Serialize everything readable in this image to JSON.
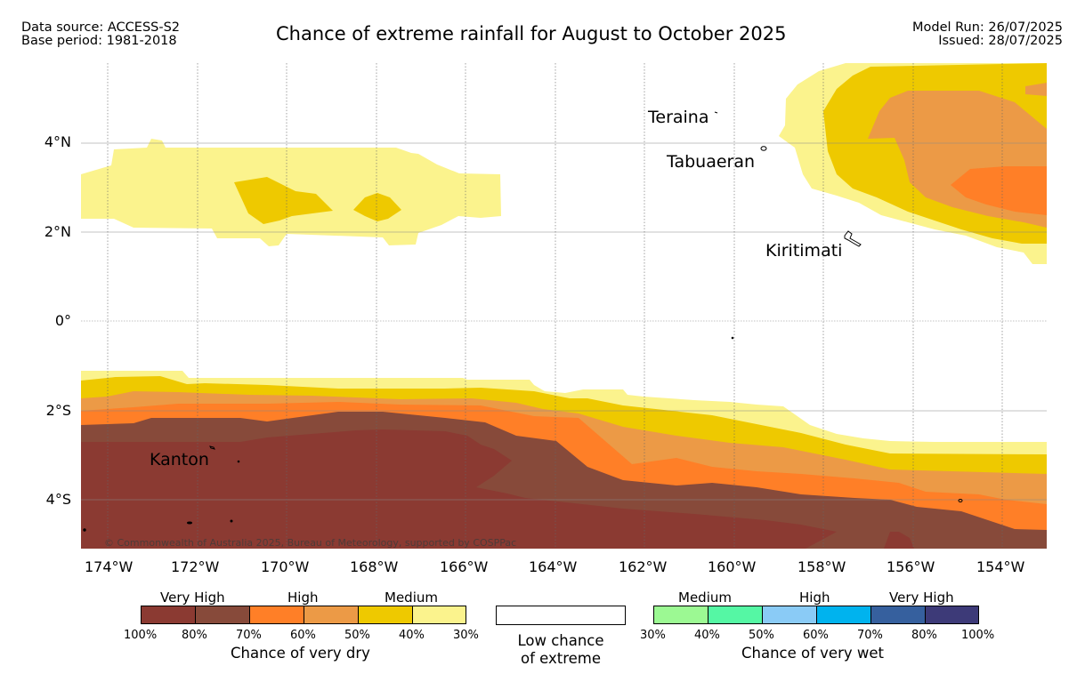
{
  "header": {
    "data_source": "Data source: ACCESS-S2",
    "base_period": "Base period: 1981-2018",
    "title": "Chance of extreme rainfall for August to October 2025",
    "model_run": "Model Run: 26/07/2025",
    "issued": "Issued: 28/07/2025"
  },
  "map": {
    "lat_labels": [
      "4°N",
      "2°N",
      "0°",
      "2°S",
      "4°S"
    ],
    "lon_labels": [
      "174°W",
      "172°W",
      "170°W",
      "168°W",
      "166°W",
      "164°W",
      "162°W",
      "160°W",
      "158°W",
      "156°W",
      "154°W"
    ],
    "places": [
      "Teraina",
      "Tabuaeran",
      "Kiritimati",
      "Kanton"
    ],
    "copyright": "© Commonwealth of Australia 2025, Bureau of Meteorology, supported by COSPPac"
  },
  "legend": {
    "dry": {
      "categories": [
        "Very High",
        "High",
        "Medium"
      ],
      "pcts": [
        "100%",
        "80%",
        "70%",
        "60%",
        "50%",
        "40%",
        "30%"
      ],
      "colors": [
        "#8B3A32",
        "#874A3A",
        "#FF7F27",
        "#EC9A46",
        "#EEC900",
        "#FBF38D"
      ],
      "title": "Chance of very dry"
    },
    "low": {
      "line1": "Low chance",
      "line2": "of extreme"
    },
    "wet": {
      "categories": [
        "Medium",
        "High",
        "Very High"
      ],
      "pcts": [
        "30%",
        "40%",
        "50%",
        "60%",
        "70%",
        "80%",
        "100%"
      ],
      "colors": [
        "#9CF993",
        "#55F7A4",
        "#8ACBF6",
        "#00B3EE",
        "#36609E",
        "#3D3A78"
      ],
      "title": "Chance of very wet"
    }
  }
}
